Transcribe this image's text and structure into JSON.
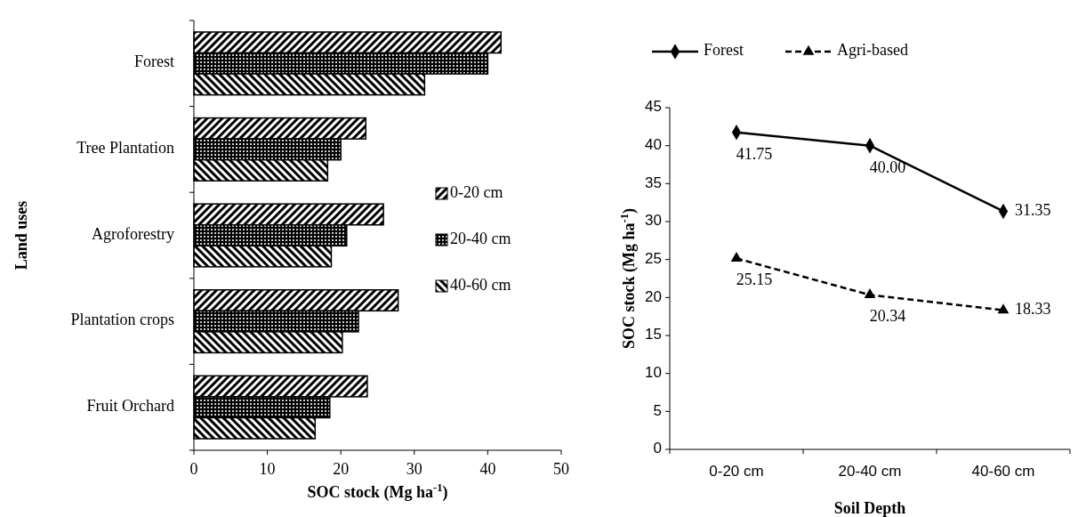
{
  "chart_data": [
    {
      "type": "bar",
      "orientation": "horizontal",
      "xlabel": "SOC stock (Mg ha$^{-1}$)",
      "ylabel": "Land uses",
      "categories": [
        "Forest",
        "Tree Plantation",
        "Agroforestry",
        "Plantation crops",
        "Fruit Orchard"
      ],
      "series": [
        {
          "name": "0-20 cm",
          "color": "#000000",
          "values": [
            41.8,
            23.4,
            25.8,
            27.8,
            23.6
          ]
        },
        {
          "name": "20-40 cm",
          "color": "#000000",
          "values": [
            40.0,
            20.0,
            20.8,
            22.4,
            18.5
          ]
        },
        {
          "name": "40-60 cm",
          "color": "#000000",
          "values": [
            31.4,
            18.2,
            18.7,
            20.2,
            16.5
          ]
        }
      ],
      "xlim": [
        0,
        50
      ],
      "xticks": [
        0,
        10,
        20,
        30,
        40,
        50
      ],
      "legend": "right"
    },
    {
      "type": "line",
      "xlabel": "Soil Depth",
      "ylabel": "SOC stock (Mg ha$^{-1}$)",
      "categories": [
        "0-20 cm",
        "20-40 cm",
        "40-60 cm"
      ],
      "series": [
        {
          "name": "Forest",
          "color": "#000000",
          "marker": "diamond",
          "line_style": "solid",
          "values": [
            41.75,
            40.0,
            31.35
          ],
          "value_labels": [
            "41.75",
            "40.00",
            "31.35"
          ]
        },
        {
          "name": "Agri-based",
          "color": "#000000",
          "marker": "triangle",
          "line_style": "dashed",
          "values": [
            25.15,
            20.34,
            18.33
          ],
          "value_labels": [
            "25.15",
            "20.34",
            "18.33"
          ]
        }
      ],
      "ylim": [
        0,
        45
      ],
      "yticks": [
        0,
        5,
        10,
        15,
        20,
        25,
        30,
        35,
        40,
        45
      ],
      "legend": "top",
      "grid": false
    }
  ]
}
